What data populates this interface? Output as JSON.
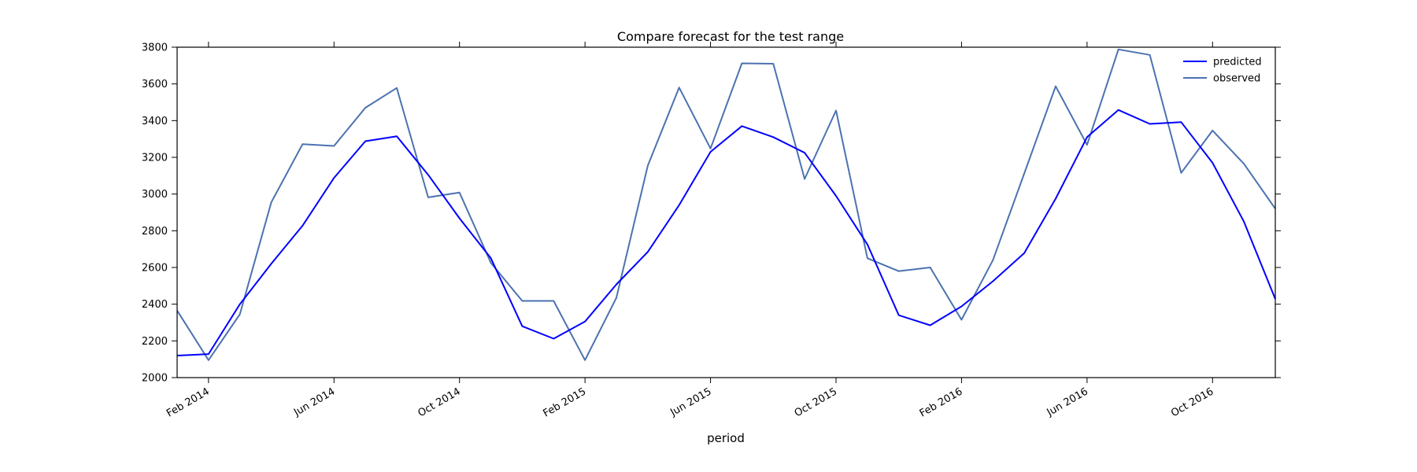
{
  "chart_data": {
    "type": "line",
    "title": "Compare forecast for the test range",
    "xlabel": "period",
    "ylabel": "",
    "x_ticks": [
      "Feb 2014",
      "Jun 2014",
      "Oct 2014",
      "Feb 2015",
      "Jun 2015",
      "Oct 2015",
      "Feb 2016",
      "Jun 2016",
      "Oct 2016"
    ],
    "x": [
      "2014-01",
      "2014-02",
      "2014-03",
      "2014-04",
      "2014-05",
      "2014-06",
      "2014-07",
      "2014-08",
      "2014-09",
      "2014-10",
      "2014-11",
      "2014-12",
      "2015-01",
      "2015-02",
      "2015-03",
      "2015-04",
      "2015-05",
      "2015-06",
      "2015-07",
      "2015-08",
      "2015-09",
      "2015-10",
      "2015-11",
      "2015-12",
      "2016-01",
      "2016-02",
      "2016-03",
      "2016-04",
      "2016-05",
      "2016-06",
      "2016-07",
      "2016-08",
      "2016-09",
      "2016-10",
      "2016-11",
      "2016-12"
    ],
    "xlim": [
      "2014-01",
      "2016-12"
    ],
    "ylim": [
      2000,
      3800
    ],
    "y_ticks": [
      2000,
      2200,
      2400,
      2600,
      2800,
      3000,
      3200,
      3400,
      3600,
      3800
    ],
    "grid": false,
    "legend_position": "top-right",
    "series": [
      {
        "name": "predicted",
        "color": "#0000ff",
        "values": [
          2120,
          2128,
          2400,
          2620,
          2828,
          3088,
          3288,
          3315,
          3105,
          2868,
          2650,
          2280,
          2212,
          2305,
          2508,
          2685,
          2940,
          3230,
          3370,
          3310,
          3225,
          2990,
          2725,
          2340,
          2285,
          2388,
          2525,
          2678,
          2975,
          3310,
          3458,
          3382,
          3392,
          3170,
          2850,
          2428
        ]
      },
      {
        "name": "observed",
        "color": "#4c72b0",
        "values": [
          2365,
          2095,
          2345,
          2955,
          3272,
          3262,
          3470,
          3578,
          2982,
          3008,
          2625,
          2418,
          2418,
          2095,
          2435,
          3155,
          3580,
          3248,
          3712,
          3710,
          3082,
          3455,
          2650,
          2580,
          2600,
          2315,
          2640,
          3112,
          3587,
          3268,
          3788,
          3758,
          3115,
          3346,
          3165,
          2920
        ]
      }
    ]
  }
}
